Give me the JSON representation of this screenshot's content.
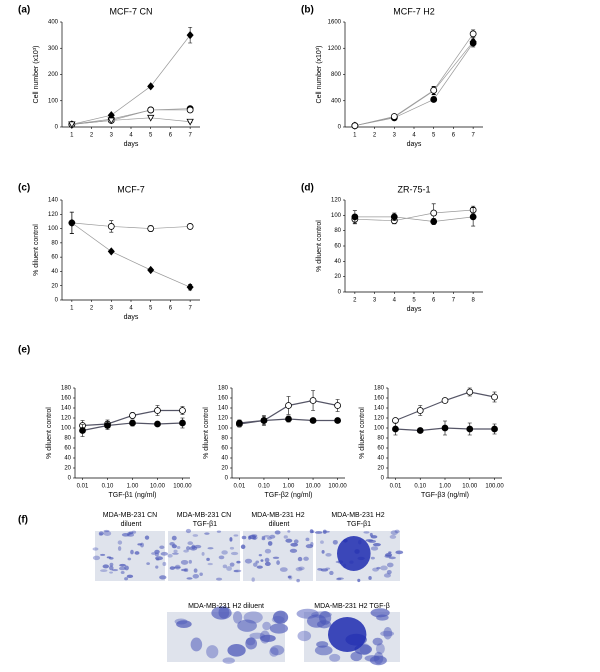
{
  "chart_data": [
    {
      "type": "line",
      "panel": "(a)",
      "title": "MCF-7 CN",
      "xlabel": "days",
      "ylabel": "Cell number (x10³)",
      "x": [
        1,
        3,
        5,
        7
      ],
      "xlim": [
        0.5,
        7.5
      ],
      "xticks": [
        1,
        2,
        3,
        4,
        5,
        6,
        7
      ],
      "ylim": [
        0,
        400
      ],
      "yticks": [
        0,
        100,
        200,
        300,
        400
      ],
      "series": [
        {
          "marker": "diamond",
          "color": "#000000",
          "values": [
            10,
            45,
            155,
            350
          ],
          "errors": [
            3,
            5,
            5,
            30
          ]
        },
        {
          "marker": "circle",
          "color": "#000000",
          "values": [
            10,
            30,
            65,
            70
          ],
          "errors": [
            2,
            3,
            5,
            8
          ]
        },
        {
          "marker": "open-circle",
          "color": "#000000",
          "values": [
            10,
            25,
            65,
            65
          ],
          "errors": [
            2,
            3,
            5,
            8
          ]
        },
        {
          "marker": "triangle-down",
          "color": "#000000",
          "values": [
            10,
            25,
            35,
            20
          ],
          "errors": [
            2,
            3,
            3,
            3
          ]
        }
      ]
    },
    {
      "type": "line",
      "panel": "(b)",
      "title": "MCF-7 H2",
      "xlabel": "days",
      "ylabel": "Cell number (x10³)",
      "x": [
        1,
        3,
        5,
        7
      ],
      "xlim": [
        0.5,
        7.5
      ],
      "xticks": [
        1,
        2,
        3,
        4,
        5,
        6,
        7
      ],
      "ylim": [
        0,
        1600
      ],
      "yticks": [
        0,
        400,
        800,
        1200,
        1600
      ],
      "series": [
        {
          "marker": "diamond",
          "color": "#000000",
          "values": [
            20,
            150,
            550,
            1300
          ],
          "errors": [
            5,
            20,
            60,
            60
          ]
        },
        {
          "marker": "circle",
          "color": "#000000",
          "values": [
            20,
            140,
            420,
            1280
          ],
          "errors": [
            5,
            20,
            30,
            60
          ]
        },
        {
          "marker": "open-circle",
          "color": "#000000",
          "values": [
            20,
            160,
            560,
            1420
          ],
          "errors": [
            5,
            20,
            60,
            60
          ]
        }
      ]
    },
    {
      "type": "line",
      "panel": "(c)",
      "title": "MCF-7",
      "xlabel": "days",
      "ylabel": "% diluent control",
      "x": [
        1,
        3,
        5,
        7
      ],
      "xlim": [
        0.5,
        7.5
      ],
      "xticks": [
        1,
        2,
        3,
        4,
        5,
        6,
        7
      ],
      "ylim": [
        0,
        140
      ],
      "yticks": [
        0,
        20,
        40,
        60,
        80,
        100,
        120,
        140
      ],
      "series": [
        {
          "marker": "open-circle",
          "color": "#000000",
          "values": [
            108,
            103,
            100,
            103
          ],
          "errors": [
            15,
            8,
            4,
            2
          ]
        },
        {
          "marker": "diamond",
          "color": "#000000",
          "values": [
            108,
            68,
            42,
            18
          ],
          "errors": [
            15,
            2,
            2,
            4
          ]
        }
      ]
    },
    {
      "type": "line",
      "panel": "(d)",
      "title": "ZR-75-1",
      "xlabel": "days",
      "ylabel": "% diluent control",
      "x": [
        2,
        4,
        6,
        8
      ],
      "xlim": [
        1.5,
        8.5
      ],
      "xticks": [
        2,
        3,
        4,
        5,
        6,
        7,
        8
      ],
      "ylim": [
        0,
        120
      ],
      "yticks": [
        0,
        20,
        40,
        60,
        80,
        100,
        120
      ],
      "series": [
        {
          "marker": "open-circle",
          "color": "#000000",
          "values": [
            95,
            93,
            103,
            107
          ],
          "errors": [
            6,
            4,
            12,
            5
          ]
        },
        {
          "marker": "circle",
          "color": "#000000",
          "values": [
            98,
            98,
            92,
            98
          ],
          "errors": [
            8,
            5,
            4,
            12
          ]
        }
      ]
    },
    {
      "type": "line",
      "panel": "(e)",
      "xlabel": "TGF-β1 (ng/ml)",
      "ylabel": "% diluent control",
      "xlog": true,
      "x": [
        0.01,
        0.1,
        1,
        10,
        100
      ],
      "xlim": [
        0.005,
        200
      ],
      "xticks": [
        0.01,
        {
          "value": 0.1,
          "label": "0.10"
        },
        {
          "value": 1,
          "label": "1.00"
        },
        {
          "value": 10,
          "label": "10.00"
        },
        {
          "value": 100,
          "label": "100.00"
        }
      ],
      "ylim": [
        0,
        180
      ],
      "yticks": [
        0,
        20,
        40,
        60,
        80,
        100,
        120,
        140,
        160,
        180
      ],
      "series": [
        {
          "marker": "open-circle",
          "color": "#000000",
          "values": [
            105,
            108,
            125,
            135,
            135
          ],
          "errors": [
            10,
            8,
            6,
            10,
            8
          ]
        },
        {
          "marker": "circle",
          "color": "#000000",
          "values": [
            95,
            105,
            110,
            108,
            110
          ],
          "errors": [
            12,
            8,
            6,
            4,
            10
          ]
        }
      ]
    },
    {
      "type": "line",
      "xlabel": "TGF-β2 (ng/ml)",
      "ylabel": "% diluent control",
      "xlog": true,
      "x": [
        0.01,
        0.1,
        1,
        10,
        100
      ],
      "xlim": [
        0.005,
        200
      ],
      "xticks": [
        0.01,
        {
          "value": 0.1,
          "label": "0.10"
        },
        {
          "value": 1,
          "label": "1.00"
        },
        {
          "value": 10,
          "label": "10.00"
        },
        {
          "value": 100,
          "label": "100.00"
        }
      ],
      "ylim": [
        0,
        180
      ],
      "yticks": [
        0,
        20,
        40,
        60,
        80,
        100,
        120,
        140,
        160,
        180
      ],
      "series": [
        {
          "marker": "open-circle",
          "color": "#000000",
          "values": [
            108,
            115,
            145,
            155,
            145
          ],
          "errors": [
            6,
            10,
            18,
            20,
            12
          ]
        },
        {
          "marker": "circle",
          "color": "#000000",
          "values": [
            110,
            115,
            118,
            115,
            115
          ],
          "errors": [
            6,
            8,
            6,
            4,
            4
          ]
        }
      ]
    },
    {
      "type": "line",
      "xlabel": "TGF-β3 (ng/ml)",
      "ylabel": "% diluent control",
      "xlog": true,
      "x": [
        0.01,
        0.1,
        1,
        10,
        100
      ],
      "xlim": [
        0.005,
        200
      ],
      "xticks": [
        0.01,
        {
          "value": 0.1,
          "label": "0.10"
        },
        {
          "value": 1,
          "label": "1.00"
        },
        {
          "value": 10,
          "label": "10.00"
        },
        {
          "value": 100,
          "label": "100.00"
        }
      ],
      "ylim": [
        0,
        180
      ],
      "yticks": [
        0,
        20,
        40,
        60,
        80,
        100,
        120,
        140,
        160,
        180
      ],
      "series": [
        {
          "marker": "open-circle",
          "color": "#000000",
          "values": [
            115,
            135,
            155,
            172,
            162
          ],
          "errors": [
            4,
            10,
            4,
            8,
            10
          ]
        },
        {
          "marker": "circle",
          "color": "#000000",
          "values": [
            98,
            95,
            100,
            98,
            98
          ],
          "errors": [
            12,
            4,
            14,
            12,
            10
          ]
        }
      ]
    }
  ],
  "panel_f": {
    "label": "(f)",
    "images": [
      "MDA-MB-231 CN diluent",
      "MDA-MB-231 CN TGF-β1",
      "MDA-MB-231 H2 diluent",
      "MDA-MB-231 H2 TGF-β1",
      "MDA-MB-231 H2  diluent",
      "MDA-MB-231 H2  TGF-β"
    ]
  }
}
